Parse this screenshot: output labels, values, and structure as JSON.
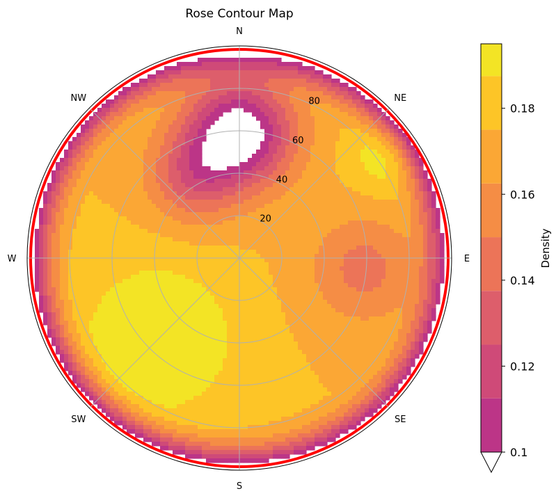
{
  "chart_data": {
    "type": "heatmap",
    "projection": "polar",
    "title": "Rose Contour Map",
    "theta_labels": [
      "N",
      "NE",
      "E",
      "SE",
      "S",
      "SW",
      "W",
      "NW"
    ],
    "theta_direction": "clockwise",
    "theta_zero": "N",
    "r_ticks": [
      20,
      40,
      60,
      80
    ],
    "r_max": 100,
    "grid": true,
    "colorbar": {
      "label": "Density",
      "ticks": [
        0.1,
        0.12,
        0.14,
        0.16,
        0.18
      ],
      "tick_labels": [
        "0.1",
        "0.12",
        "0.14",
        "0.16",
        "0.18"
      ],
      "range": [
        0.1,
        0.195
      ],
      "extend": "min",
      "levels": [
        0.1,
        0.1125,
        0.125,
        0.1375,
        0.15,
        0.1625,
        0.175,
        0.1875,
        0.195
      ],
      "colors": [
        "#bc3587",
        "#cf4a78",
        "#dd5e6b",
        "#ec7458",
        "#f58d45",
        "#fba735",
        "#fdc527",
        "#f3e425"
      ]
    },
    "highlight_contour": {
      "level": 0.1,
      "color": "#ff0000"
    },
    "density_model": {
      "base": 0.175,
      "components": [
        {
          "theta_deg": 225,
          "r": 55,
          "amplitude": 0.03,
          "spread": 25
        },
        {
          "theta_deg": 55,
          "r": 85,
          "amplitude": 0.02,
          "spread": 12
        },
        {
          "theta_deg": 0,
          "r": 60,
          "amplitude": -0.09,
          "spread": 18
        },
        {
          "theta_deg": 95,
          "r": 60,
          "amplitude": -0.03,
          "spread": 18
        },
        {
          "theta_deg": 330,
          "r": 45,
          "amplitude": -0.04,
          "spread": 15
        }
      ]
    }
  }
}
